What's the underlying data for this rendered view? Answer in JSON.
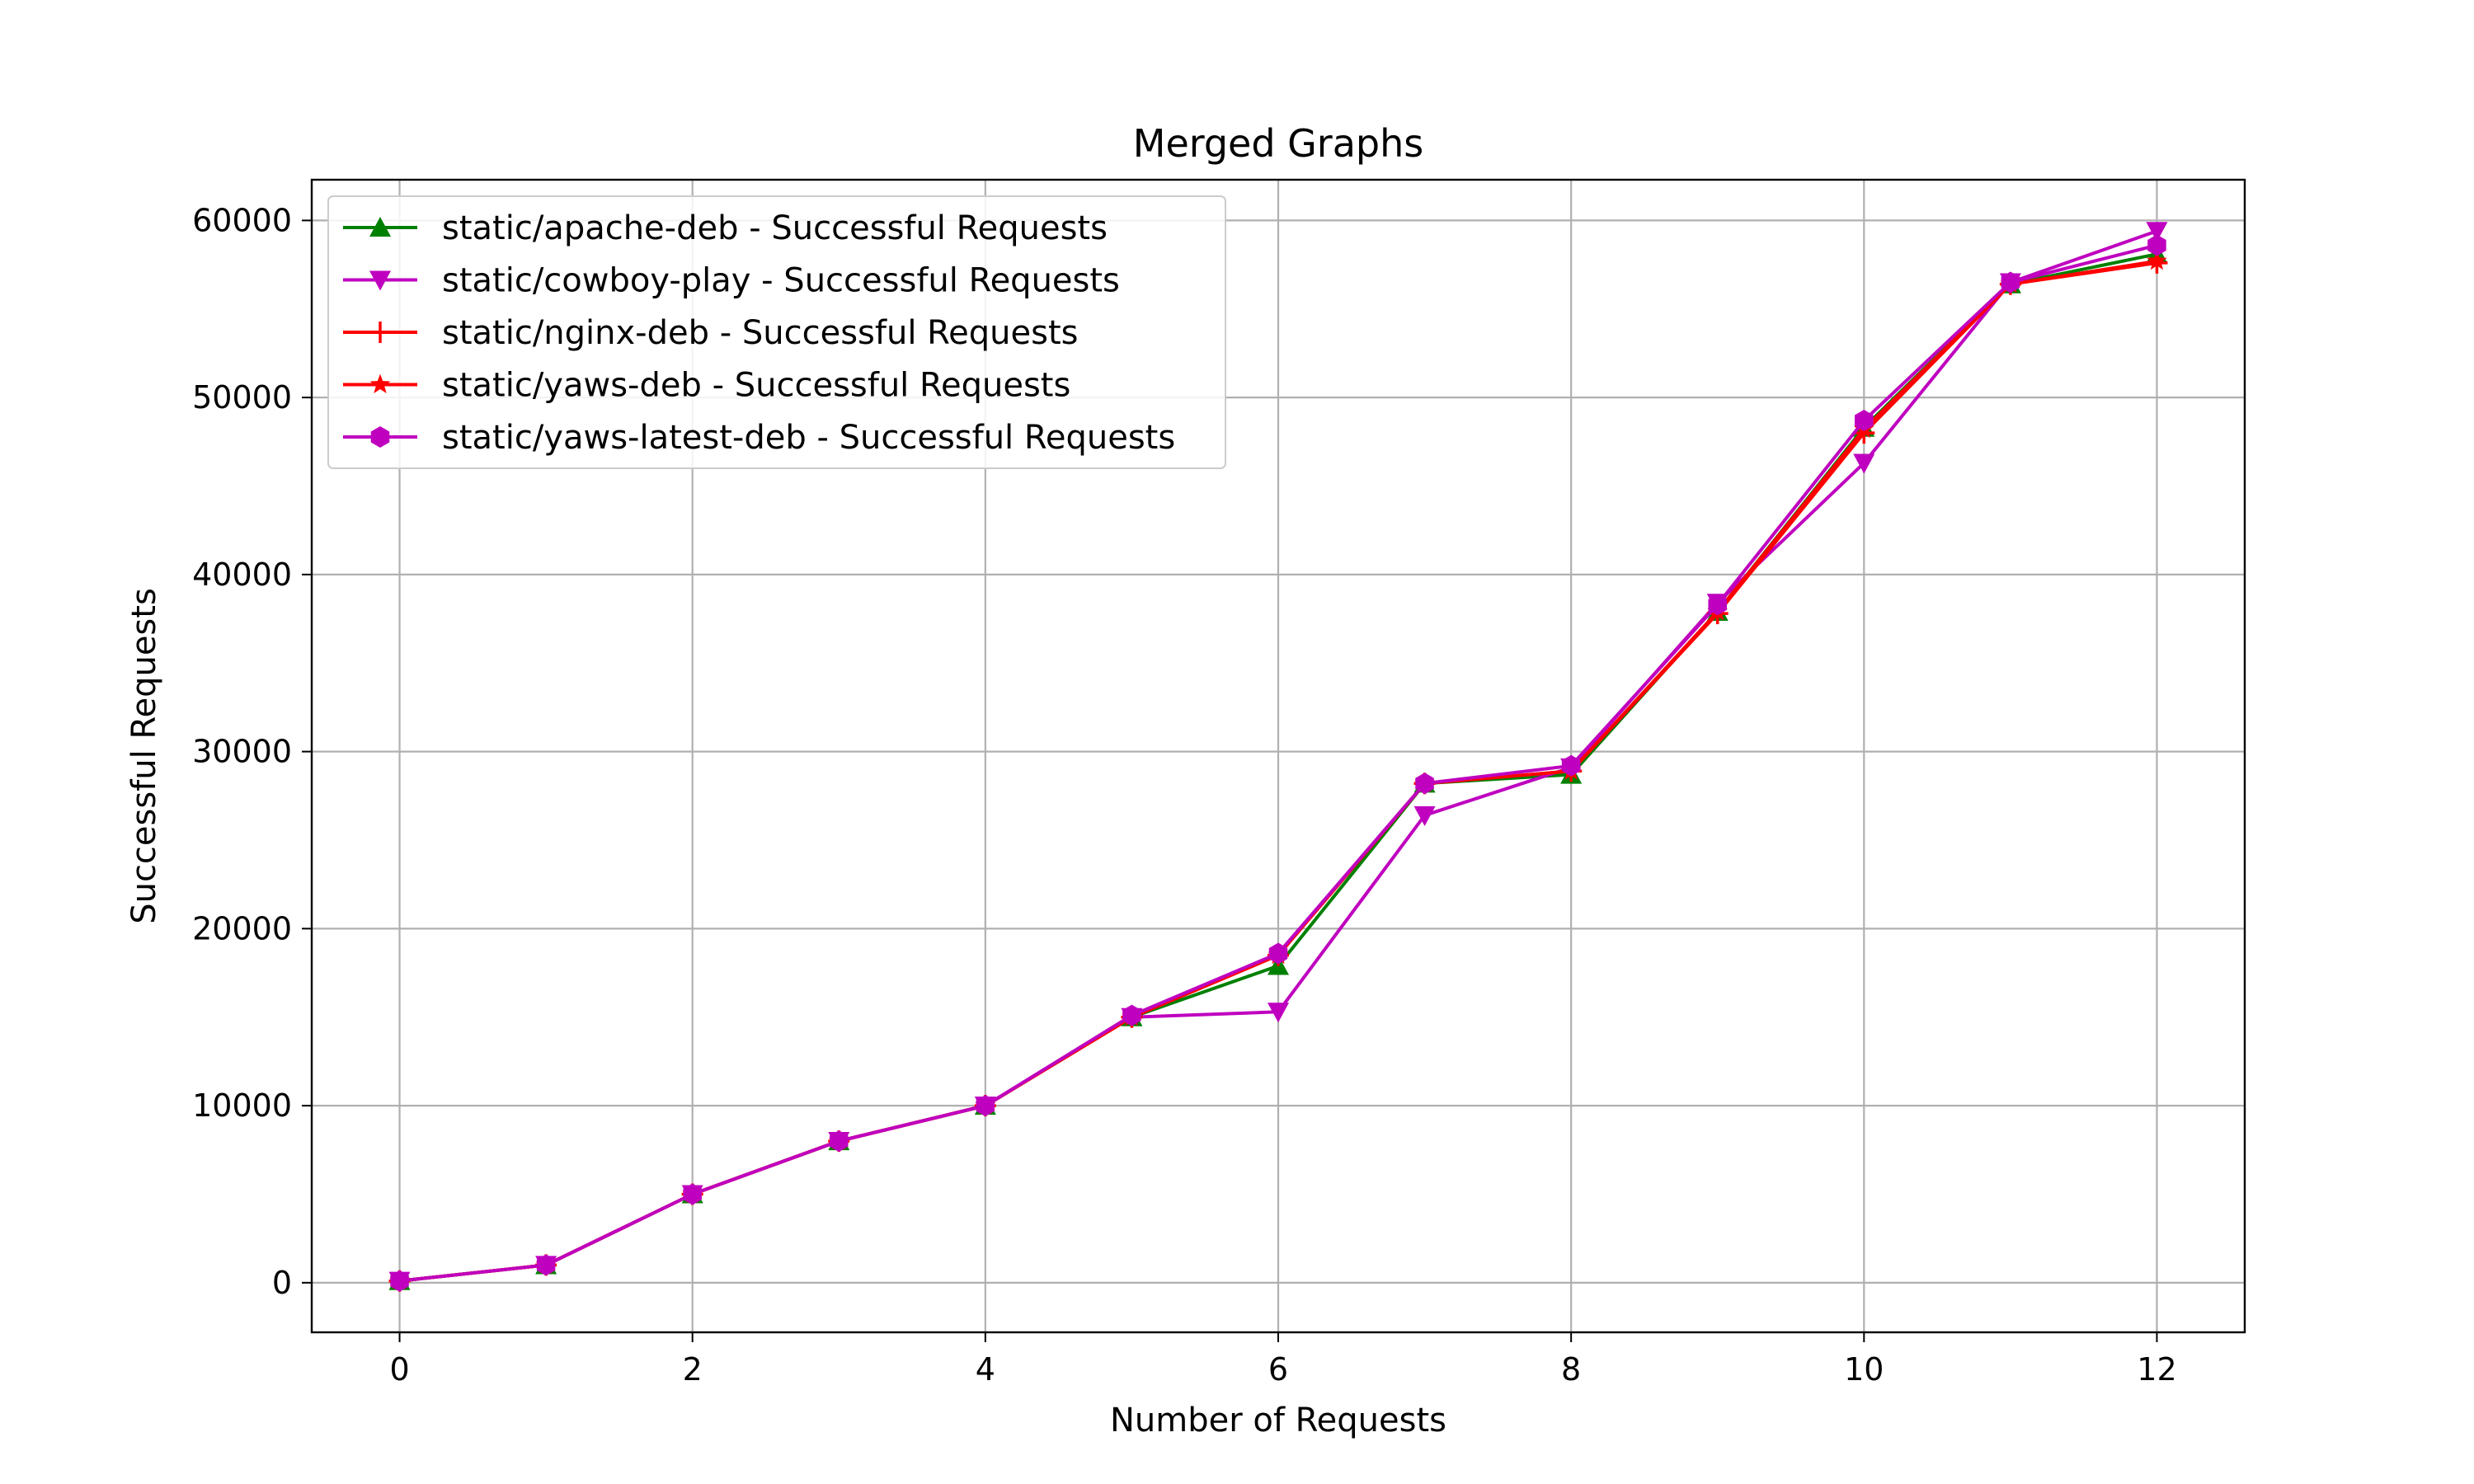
{
  "chart_data": {
    "type": "line",
    "title": "Merged Graphs",
    "xlabel": "Number of Requests",
    "ylabel": "Successful Requests",
    "xlim": [
      -0.6,
      12.6
    ],
    "ylim": [
      -2800,
      62300
    ],
    "xticks": [
      0,
      2,
      4,
      6,
      8,
      10,
      12
    ],
    "yticks": [
      0,
      10000,
      20000,
      30000,
      40000,
      50000,
      60000
    ],
    "grid": true,
    "legend_position": "top-left",
    "x": [
      0,
      1,
      2,
      3,
      4,
      5,
      6,
      7,
      8,
      9,
      10,
      11,
      12
    ],
    "series": [
      {
        "name": "static/apache-deb - Successful Requests",
        "color": "#008000",
        "marker": "triangle-up",
        "values": [
          100,
          1000,
          5000,
          8000,
          10000,
          15000,
          17900,
          28200,
          28700,
          37900,
          48300,
          56400,
          58100
        ]
      },
      {
        "name": "static/cowboy-play - Successful Requests",
        "color": "#bf00bf",
        "marker": "triangle-down",
        "values": [
          100,
          1000,
          5000,
          8000,
          10000,
          15000,
          15300,
          26400,
          29100,
          38400,
          46300,
          56500,
          59400
        ]
      },
      {
        "name": "static/nginx-deb - Successful Requests",
        "color": "#ff0000",
        "marker": "plus",
        "values": [
          100,
          1000,
          5000,
          8000,
          10000,
          15000,
          18500,
          28200,
          28900,
          37800,
          48000,
          56400,
          57600
        ]
      },
      {
        "name": "static/yaws-deb - Successful Requests",
        "color": "#ff0000",
        "marker": "star",
        "values": [
          100,
          1000,
          5000,
          8000,
          10000,
          15000,
          18500,
          28200,
          28900,
          37900,
          48200,
          56400,
          57700
        ]
      },
      {
        "name": "static/yaws-latest-deb - Successful Requests",
        "color": "#bf00bf",
        "marker": "hexagon",
        "values": [
          100,
          1000,
          5000,
          8000,
          10000,
          15100,
          18600,
          28200,
          29200,
          38300,
          48700,
          56500,
          58600
        ]
      }
    ]
  }
}
